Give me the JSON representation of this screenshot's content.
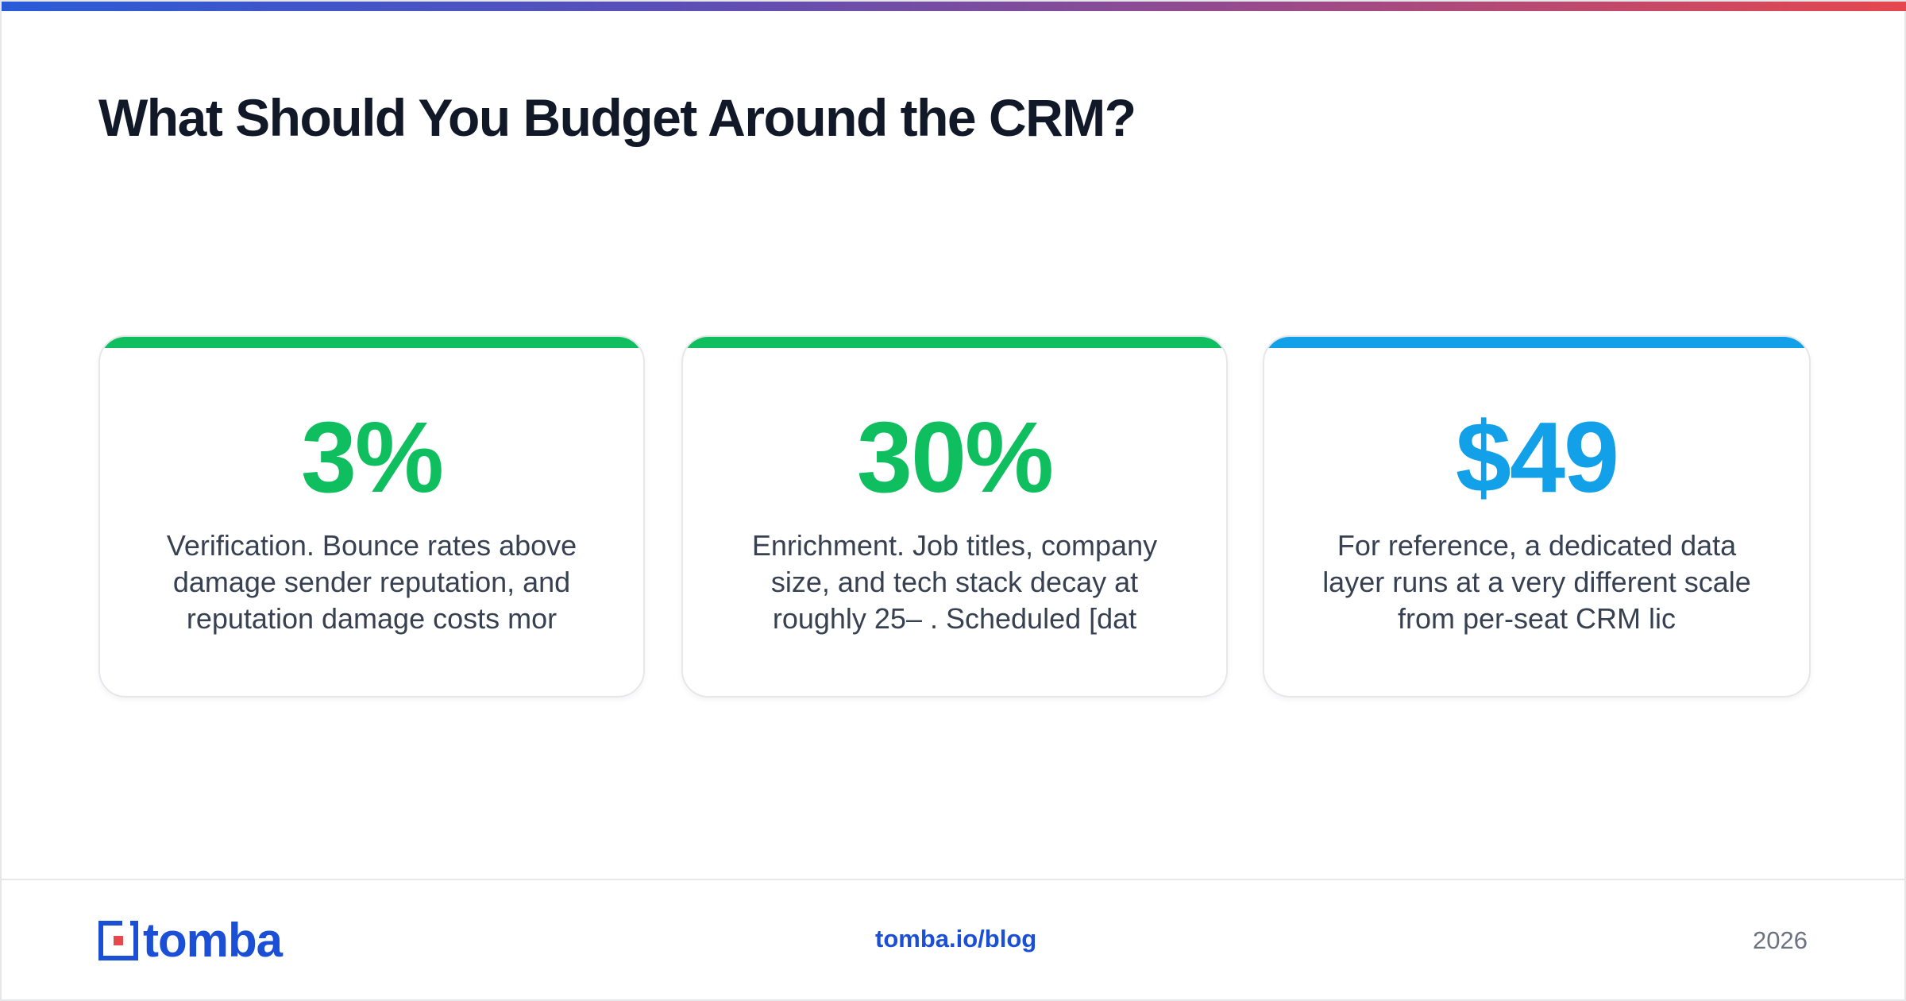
{
  "title": "What Should You Budget Around the CRM?",
  "colors": {
    "green": "#0fbf5f",
    "blue": "#12a0e8",
    "brand": "#1a4fd6",
    "text_dark": "#111827",
    "text_body": "#374151"
  },
  "cards": [
    {
      "value": "3%",
      "accent": "#0fbf5f",
      "lines": [
        "Verification. Bounce rates above",
        "damage sender reputation, and",
        "reputation damage costs mor"
      ]
    },
    {
      "value": "30%",
      "accent": "#0fbf5f",
      "lines": [
        "Enrichment. Job titles, company",
        "size, and tech stack decay at",
        "roughly 25– . Scheduled [dat"
      ]
    },
    {
      "value": "$49",
      "accent": "#12a0e8",
      "lines": [
        "For reference, a dedicated data",
        "layer runs at a very different scale",
        "from per-seat CRM lic"
      ]
    }
  ],
  "footer": {
    "logo_text": "tomba",
    "logo_icon": "tomba-logo-icon",
    "link": "tomba.io/blog",
    "year": "2026"
  }
}
